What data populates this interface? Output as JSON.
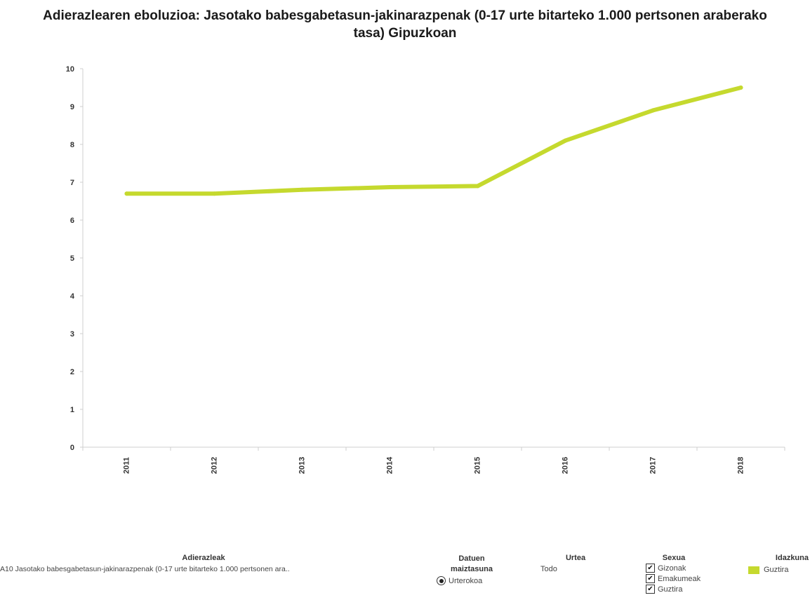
{
  "chart_data": {
    "type": "line",
    "title": "Adierazlearen eboluzioa: Jasotako babesgabetasun-jakinarazpenak (0-17 urte bitarteko 1.000 pertsonen araberako tasa) Gipuzkoan",
    "xlabel": "",
    "ylabel": "",
    "categories": [
      "2011",
      "2012",
      "2013",
      "2014",
      "2015",
      "2016",
      "2017",
      "2018"
    ],
    "series": [
      {
        "name": "Guztira",
        "color": "#c5d92e",
        "values": [
          6.7,
          6.7,
          6.8,
          6.87,
          6.9,
          8.1,
          8.9,
          9.5
        ]
      }
    ],
    "ylim": [
      0,
      10
    ],
    "yticks": [
      "0",
      "1",
      "2",
      "3",
      "4",
      "5",
      "6",
      "7",
      "8",
      "9",
      "10"
    ],
    "grid": false,
    "legend_position": "bottom-right"
  },
  "filters": {
    "indicators": {
      "title": "Adierazleak",
      "item": "A10 Jasotako babesgabetasun-jakinarazpenak (0-17 urte bitarteko 1.000 pertsonen ara.."
    },
    "frequency": {
      "title_line1": "Datuen",
      "title_line2": "maiztasuna",
      "option": "Urterokoa"
    },
    "year": {
      "title": "Urtea",
      "value": "Todo"
    },
    "sex": {
      "title": "Sexua",
      "options": [
        "Gizonak",
        "Emakumeak",
        "Guztira"
      ],
      "check_mark": "✔"
    },
    "legend": {
      "title": "Idazkuna",
      "item": "Guztira"
    }
  },
  "colors": {
    "line": "#c5d92e",
    "axis": "#cfcfcf"
  }
}
